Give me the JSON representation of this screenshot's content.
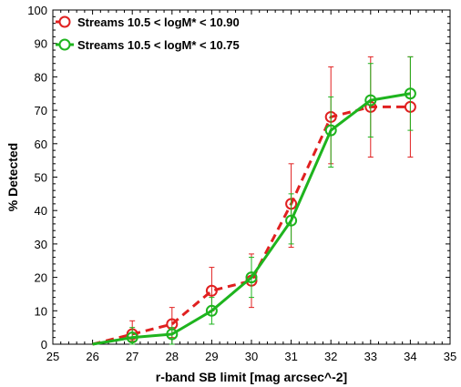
{
  "chart_data": {
    "type": "line",
    "title": "",
    "xlabel": "r-band SB limit [mag arcsec^-2]",
    "ylabel": "% Detected",
    "xlim": [
      25,
      35
    ],
    "ylim": [
      0,
      100
    ],
    "x_ticks": [
      25,
      26,
      27,
      28,
      29,
      30,
      31,
      32,
      33,
      34,
      35
    ],
    "y_ticks": [
      0,
      10,
      20,
      30,
      40,
      50,
      60,
      70,
      80,
      90,
      100
    ],
    "grid": false,
    "legend_placement": "top-left",
    "series": [
      {
        "name": "Streams 10.5 < logM* < 10.90",
        "color": "#e02020",
        "line_style": "dashed",
        "marker": "open-circle",
        "x": [
          26,
          27,
          28,
          29,
          30,
          31,
          32,
          33,
          34
        ],
        "y": [
          0,
          3,
          6,
          16,
          19,
          42,
          68,
          71,
          71
        ],
        "y_err_low": [
          0,
          1,
          2,
          10,
          11,
          29,
          54,
          56,
          56
        ],
        "y_err_high": [
          0,
          7,
          11,
          23,
          27,
          54,
          83,
          86,
          86
        ]
      },
      {
        "name": "Streams 10.5 < logM* < 10.75",
        "color": "#1eb41e",
        "line_style": "solid",
        "marker": "open-circle",
        "x": [
          26,
          27,
          28,
          29,
          30,
          31,
          32,
          33,
          34
        ],
        "y": [
          0,
          2,
          3,
          10,
          20,
          37,
          64,
          73,
          75
        ],
        "y_err_low": [
          0,
          0,
          0,
          6,
          14,
          30,
          53,
          62,
          64
        ],
        "y_err_high": [
          0,
          5,
          5,
          14,
          26,
          45,
          74,
          84,
          86
        ]
      }
    ]
  }
}
